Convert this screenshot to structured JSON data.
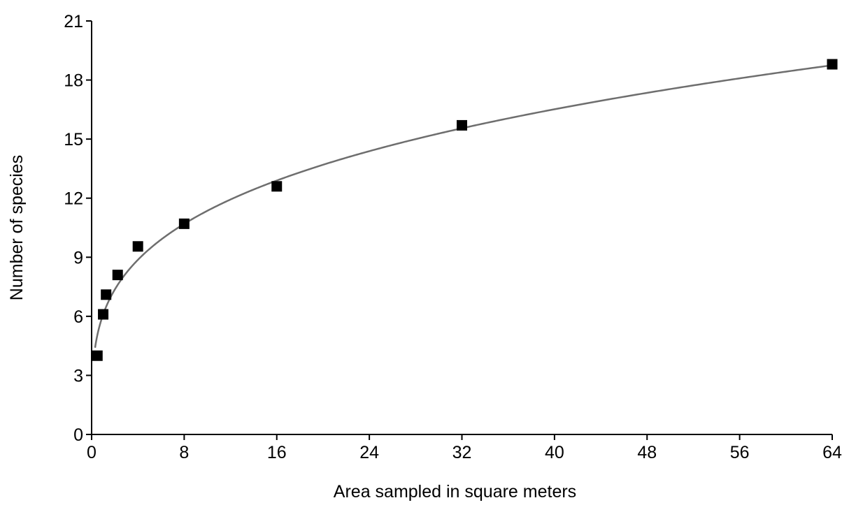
{
  "chart_data": {
    "type": "scatter",
    "title": "",
    "xlabel": "Area sampled in square meters",
    "ylabel": "Number of species",
    "xlim": [
      0,
      64
    ],
    "ylim": [
      0,
      21
    ],
    "x_ticks": [
      0,
      8,
      16,
      24,
      32,
      40,
      48,
      56,
      64
    ],
    "y_ticks": [
      0,
      3,
      6,
      9,
      12,
      15,
      18,
      21
    ],
    "grid": false,
    "legend": "none",
    "series": [
      {
        "marker": "square",
        "color": "#000000",
        "points": [
          {
            "x": 0.5,
            "y": 4.0
          },
          {
            "x": 1,
            "y": 6.1
          },
          {
            "x": 1.25,
            "y": 7.1
          },
          {
            "x": 2.25,
            "y": 8.1
          },
          {
            "x": 4,
            "y": 9.55
          },
          {
            "x": 8,
            "y": 10.7
          },
          {
            "x": 16,
            "y": 12.6
          },
          {
            "x": 32,
            "y": 15.7
          },
          {
            "x": 64,
            "y": 18.8
          }
        ]
      }
    ],
    "fit_curve": {
      "color": "#6e6e6e",
      "form": "power",
      "coefficient": 6.1,
      "exponent": 0.27
    }
  }
}
